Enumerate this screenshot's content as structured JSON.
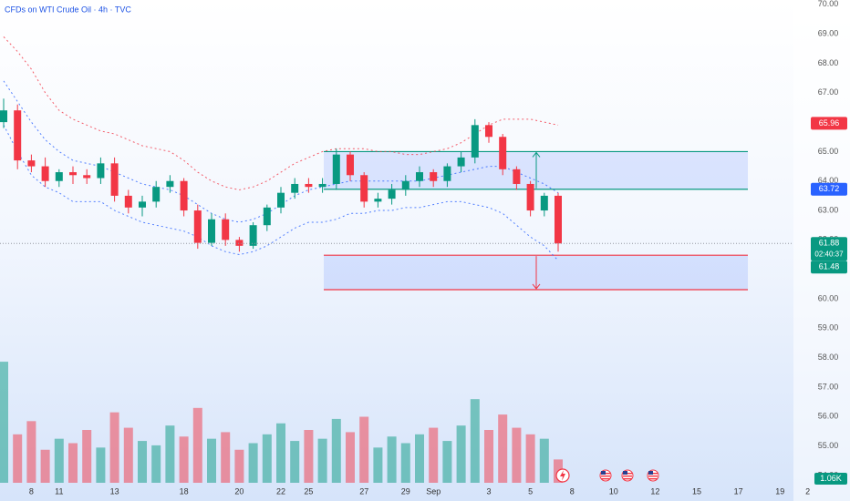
{
  "chart_data": {
    "type": "candlestick",
    "title": "CFDs on WTI Crude Oil · 4h · TVC",
    "categories": [
      null,
      null,
      "8",
      null,
      "11",
      null,
      null,
      null,
      "13",
      null,
      null,
      null,
      null,
      "18",
      null,
      null,
      null,
      "20",
      null,
      null,
      "22",
      null,
      "25",
      null,
      null,
      null,
      "27",
      null,
      null,
      "29",
      null,
      "Sep",
      null,
      null,
      null,
      "3",
      null,
      null,
      "5",
      null,
      null,
      "8",
      null,
      null,
      "10",
      null,
      null,
      "12",
      null,
      null,
      "15",
      null,
      null,
      "17",
      null,
      null,
      "19",
      null,
      "2"
    ],
    "open": [
      66.0,
      66.4,
      64.7,
      64.5,
      64.0,
      64.3,
      64.2,
      64.1,
      64.6,
      63.5,
      63.1,
      63.3,
      63.8,
      64.0,
      63.0,
      61.9,
      62.7,
      62.0,
      61.8,
      62.5,
      63.1,
      63.6,
      63.9,
      63.8,
      63.9,
      64.9,
      64.2,
      63.3,
      63.4,
      63.7,
      64.0,
      64.3,
      64.0,
      64.5,
      64.8,
      65.9,
      65.5,
      64.4,
      63.9,
      63.0,
      63.5,
      null,
      null,
      null,
      null,
      null,
      null,
      null,
      null,
      null,
      null,
      null,
      null,
      null,
      null,
      null,
      null,
      null,
      null
    ],
    "high": [
      66.8,
      66.6,
      64.9,
      64.8,
      64.4,
      64.5,
      64.4,
      64.8,
      64.8,
      63.7,
      63.5,
      64.0,
      64.2,
      64.1,
      63.2,
      62.9,
      62.9,
      62.1,
      62.6,
      63.2,
      63.8,
      64.1,
      64.1,
      64.1,
      65.1,
      65.0,
      64.3,
      63.6,
      63.9,
      64.2,
      64.5,
      64.4,
      64.6,
      65.0,
      66.1,
      66.0,
      65.6,
      64.5,
      64.0,
      63.6,
      63.6,
      null,
      null,
      null,
      null,
      null,
      null,
      null,
      null,
      null,
      null,
      null,
      null,
      null,
      null,
      null,
      null,
      null,
      null
    ],
    "low": [
      65.8,
      64.4,
      64.3,
      63.8,
      63.8,
      63.9,
      63.9,
      63.9,
      63.3,
      62.9,
      62.8,
      63.1,
      63.6,
      62.8,
      61.7,
      61.8,
      61.8,
      61.6,
      61.7,
      62.3,
      62.9,
      63.4,
      63.6,
      63.6,
      63.7,
      64.0,
      63.1,
      63.1,
      63.2,
      63.5,
      63.8,
      63.8,
      63.8,
      64.3,
      64.6,
      65.3,
      64.2,
      63.7,
      62.8,
      62.8,
      61.6,
      null,
      null,
      null,
      null,
      null,
      null,
      null,
      null,
      null,
      null,
      null,
      null,
      null,
      null,
      null,
      null,
      null,
      null
    ],
    "close": [
      66.4,
      64.7,
      64.5,
      64.0,
      64.3,
      64.2,
      64.1,
      64.6,
      63.5,
      63.1,
      63.3,
      63.8,
      64.0,
      63.0,
      61.9,
      62.7,
      62.0,
      61.8,
      62.5,
      63.1,
      63.6,
      63.9,
      63.8,
      63.9,
      64.9,
      64.2,
      63.3,
      63.4,
      63.7,
      64.0,
      64.3,
      64.0,
      64.5,
      64.8,
      65.9,
      65.5,
      64.4,
      63.9,
      63.0,
      63.5,
      61.88,
      null,
      null,
      null,
      null,
      null,
      null,
      null,
      null,
      null,
      null,
      null,
      null,
      null,
      null,
      null,
      null,
      null,
      null
    ],
    "volume": [
      5.5,
      2.2,
      2.8,
      1.5,
      2.0,
      1.8,
      2.4,
      1.6,
      3.2,
      2.5,
      1.9,
      1.7,
      2.6,
      2.1,
      3.4,
      2.0,
      2.3,
      1.5,
      1.8,
      2.2,
      2.7,
      1.9,
      2.4,
      2.0,
      2.9,
      2.3,
      3.0,
      1.6,
      2.1,
      1.8,
      2.2,
      2.5,
      1.9,
      2.6,
      3.8,
      2.4,
      3.1,
      2.5,
      2.2,
      2.0,
      1.06,
      null,
      null,
      null,
      null,
      null,
      null,
      null,
      null,
      null,
      null,
      null,
      null,
      null,
      null,
      null,
      null,
      null,
      null
    ],
    "up_color": "#089981",
    "down_color": "#f23645",
    "bands": {
      "upper": [
        68.9,
        68.4,
        67.8,
        67.0,
        66.4,
        66.1,
        65.9,
        65.7,
        65.6,
        65.4,
        65.2,
        65.1,
        65.0,
        64.7,
        64.3,
        64.0,
        63.8,
        63.7,
        63.8,
        64.0,
        64.3,
        64.6,
        64.8,
        65.0,
        65.1,
        65.1,
        65.1,
        65.0,
        65.0,
        64.9,
        64.9,
        65.0,
        65.1,
        65.3,
        65.6,
        65.9,
        66.1,
        66.1,
        66.1,
        66.0,
        65.9,
        null,
        null,
        null,
        null,
        null,
        null,
        null,
        null,
        null,
        null,
        null,
        null,
        null,
        null,
        null,
        null,
        null,
        null
      ],
      "basis": [
        67.4,
        66.7,
        66.0,
        65.4,
        65.0,
        64.7,
        64.6,
        64.5,
        64.3,
        64.1,
        63.9,
        63.8,
        63.7,
        63.5,
        63.2,
        62.9,
        62.7,
        62.6,
        62.7,
        62.9,
        63.2,
        63.5,
        63.7,
        63.8,
        63.9,
        64.0,
        64.0,
        64.0,
        64.0,
        64.0,
        64.0,
        64.1,
        64.2,
        64.3,
        64.4,
        64.5,
        64.5,
        64.3,
        64.1,
        63.9,
        63.6,
        null,
        null,
        null,
        null,
        null,
        null,
        null,
        null,
        null,
        null,
        null,
        null,
        null,
        null,
        null,
        null,
        null,
        null
      ],
      "lower": [
        65.9,
        65.0,
        64.2,
        63.8,
        63.6,
        63.3,
        63.3,
        63.3,
        63.0,
        62.8,
        62.6,
        62.5,
        62.4,
        62.3,
        62.1,
        61.8,
        61.6,
        61.5,
        61.6,
        61.8,
        62.1,
        62.4,
        62.6,
        62.6,
        62.7,
        62.9,
        62.9,
        63.0,
        63.0,
        63.1,
        63.1,
        63.2,
        63.3,
        63.3,
        63.2,
        63.1,
        62.9,
        62.5,
        62.1,
        61.8,
        61.3,
        null,
        null,
        null,
        null,
        null,
        null,
        null,
        null,
        null,
        null,
        null,
        null,
        null,
        null,
        null,
        null,
        null,
        null
      ],
      "upper_color": "#f23645",
      "basis_color": "#2962ff",
      "lower_color": "#2962ff"
    },
    "zones": [
      {
        "top": 65.0,
        "bottom": 63.72,
        "color": "#089981",
        "direction": "up"
      },
      {
        "top": 61.48,
        "bottom": 60.31,
        "color": "#f23645",
        "direction": "down"
      }
    ],
    "price_tags": [
      {
        "value": 65.96,
        "color": "#f23645"
      },
      {
        "value": 63.72,
        "color": "#2962ff"
      },
      {
        "value": 61.88,
        "color": "#089981",
        "countdown": "02:40:37"
      },
      {
        "value": 61.48,
        "color": "#089981"
      }
    ],
    "volume_tag": {
      "value": 1.06,
      "label": "1.06K",
      "color": "#089981"
    },
    "ylim": [
      53.13,
      70.15
    ],
    "vlim": [
      0,
      6
    ],
    "yticks": [
      {
        "value": 70,
        "label": "70.00"
      },
      {
        "value": 69,
        "label": "69.00"
      },
      {
        "value": 68,
        "label": "68.00"
      },
      {
        "value": 67,
        "label": "67.00"
      },
      {
        "value": 66,
        "label": "66.00"
      },
      {
        "value": 65,
        "label": "65.00"
      },
      {
        "value": 64,
        "label": "64.00"
      },
      {
        "value": 63,
        "label": "63.00"
      },
      {
        "value": 62,
        "label": "62.00"
      },
      {
        "value": 61,
        "label": "61.00"
      },
      {
        "value": 60,
        "label": "60.00"
      },
      {
        "value": 59,
        "label": "59.00"
      },
      {
        "value": 58,
        "label": "58.00"
      },
      {
        "value": 57,
        "label": "57.00"
      },
      {
        "value": 56,
        "label": "56.00"
      },
      {
        "value": 55,
        "label": "55.00"
      },
      {
        "value": 54,
        "label": "54.00"
      }
    ],
    "grid": false
  }
}
